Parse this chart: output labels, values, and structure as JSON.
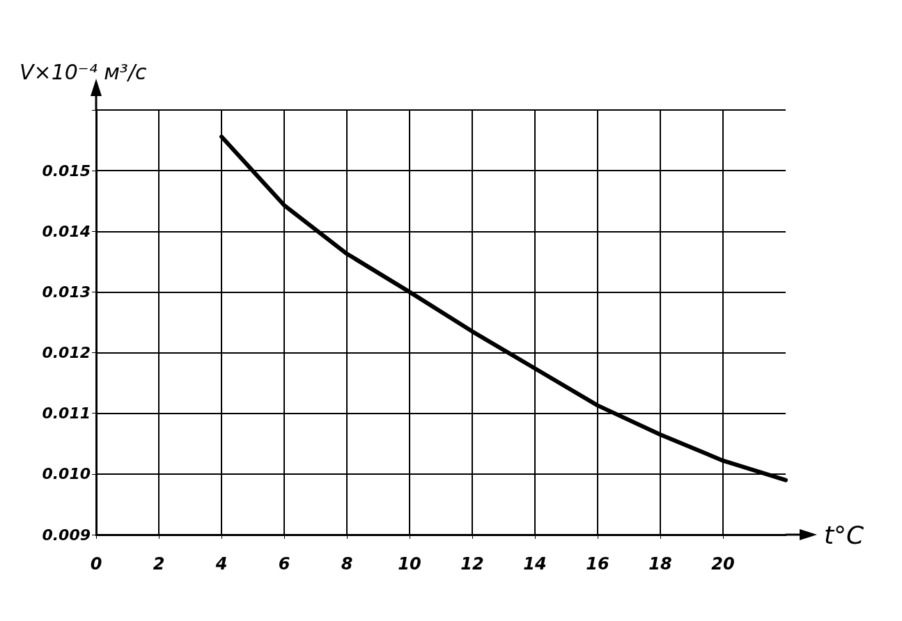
{
  "chart_data": {
    "type": "line",
    "xlabel": "t°C",
    "ylabel": "V×10⁻⁴ м³/с",
    "x": [
      4,
      6,
      8,
      10,
      12,
      14,
      16,
      18,
      20,
      22
    ],
    "series": [
      {
        "color": "#000000",
        "values": [
          0.01556,
          0.01443,
          0.01363,
          0.013,
          0.01235,
          0.01174,
          0.01113,
          0.01065,
          0.01022,
          0.0099
        ]
      }
    ],
    "xlim": [
      0,
      22
    ],
    "xticks": [
      0,
      2,
      4,
      6,
      8,
      10,
      12,
      14,
      16,
      18,
      20
    ],
    "ylim": [
      0.009,
      0.016
    ],
    "yticks": [
      0.009,
      {
        "value": 0.01,
        "label": "0.010"
      },
      0.011,
      0.012,
      0.013,
      0.014,
      0.015,
      {
        "value": 0.016,
        "label": null
      }
    ],
    "grid": true,
    "marker": "none",
    "line_style": "solid"
  }
}
